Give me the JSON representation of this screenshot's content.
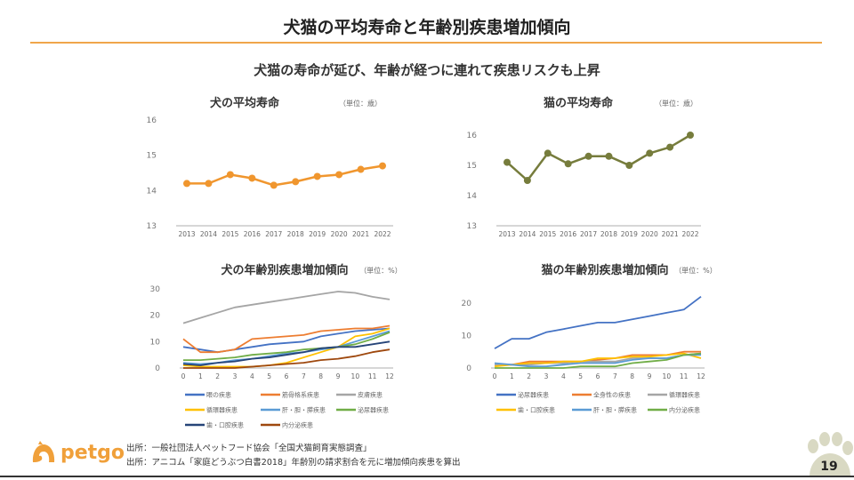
{
  "slide": {
    "title": "犬猫の平均寿命と年齢別疾患増加傾向",
    "subtitle": "犬猫の寿命が延び、年齢が経つに連れて疾患リスクも上昇",
    "logo_text": "petgo",
    "sources": [
      "出所：一般社団法人ペットフード協会「全国犬猫飼育実態調査」",
      "出所：アニコム「家庭どうぶつ白書2018」年齢別の請求割合を元に増加傾向疾患を算出"
    ],
    "page_number": "19",
    "colors": {
      "accent": "#f0a64a",
      "logo": "#f0a03a",
      "paw": "#d9d9c3"
    }
  },
  "chart_data": [
    {
      "id": "dog-lifespan",
      "type": "line",
      "title": "犬の平均寿命",
      "unit": "（単位：歳）",
      "x": [
        "2013",
        "2014",
        "2015",
        "2016",
        "2017",
        "2018",
        "2019",
        "2020",
        "2021",
        "2022"
      ],
      "series": [
        {
          "name": "犬の平均寿命",
          "color": "#f0962e",
          "markers": true,
          "values": [
            14.2,
            14.2,
            14.45,
            14.35,
            14.15,
            14.25,
            14.4,
            14.45,
            14.6,
            14.7
          ]
        }
      ],
      "ylim": [
        13,
        16
      ],
      "yticks": [
        13,
        14,
        15,
        16
      ],
      "grid": false,
      "legend": "none"
    },
    {
      "id": "cat-lifespan",
      "type": "line",
      "title": "猫の平均寿命",
      "unit": "（単位：歳）",
      "x": [
        "2013",
        "2014",
        "2015",
        "2016",
        "2017",
        "2018",
        "2019",
        "2020",
        "2021",
        "2022"
      ],
      "series": [
        {
          "name": "猫の平均寿命",
          "color": "#767c3c",
          "markers": true,
          "values": [
            15.1,
            14.5,
            15.4,
            15.05,
            15.3,
            15.3,
            15.0,
            15.4,
            15.6,
            16.0
          ]
        }
      ],
      "ylim": [
        13,
        16.5
      ],
      "yticks": [
        13,
        14,
        15,
        16
      ],
      "grid": false,
      "legend": "none"
    },
    {
      "id": "dog-disease",
      "type": "line",
      "title": "犬の年齢別疾患増加傾向",
      "unit": "（単位：%）",
      "x": [
        "0",
        "1",
        "2",
        "3",
        "4",
        "5",
        "6",
        "7",
        "8",
        "9",
        "10",
        "11",
        "12"
      ],
      "series": [
        {
          "name": "眼の疾患",
          "color": "#4472c4",
          "values": [
            8,
            7,
            6,
            7,
            8,
            9,
            9.5,
            10,
            12,
            13,
            14,
            14.5,
            15
          ]
        },
        {
          "name": "筋骨格系疾患",
          "color": "#ed7d31",
          "values": [
            11,
            6,
            6,
            7,
            11,
            11.5,
            12,
            12.5,
            14,
            14.5,
            15,
            15,
            16
          ]
        },
        {
          "name": "皮膚疾患",
          "color": "#a5a5a5",
          "values": [
            17,
            19,
            21,
            23,
            24,
            25,
            26,
            27,
            28,
            29,
            28.5,
            27,
            26
          ]
        },
        {
          "name": "循環器疾患",
          "color": "#ffc000",
          "values": [
            1,
            0.5,
            0.5,
            0.5,
            0.5,
            1,
            2,
            4,
            6,
            8,
            12,
            13,
            15
          ]
        },
        {
          "name": "肝・胆・膵疾患",
          "color": "#5b9bd5",
          "values": [
            2,
            1.5,
            2,
            3,
            3.5,
            4.5,
            5.5,
            6,
            7,
            8,
            10,
            12,
            14
          ]
        },
        {
          "name": "泌尿器疾患",
          "color": "#70ad47",
          "values": [
            3,
            3,
            3.5,
            4,
            5,
            5.5,
            6,
            7,
            7.5,
            8,
            9,
            11,
            13.5
          ]
        },
        {
          "name": "歯・口腔疾患",
          "color": "#264478",
          "values": [
            1.5,
            1,
            2,
            2.5,
            3.5,
            4,
            5,
            6,
            7.5,
            8,
            8,
            9,
            10
          ]
        },
        {
          "name": "内分泌疾患",
          "color": "#9e480e",
          "values": [
            0,
            0,
            0,
            0,
            0.5,
            1,
            1.5,
            2,
            3,
            3.5,
            4.5,
            6,
            7
          ]
        }
      ],
      "ylim": [
        0,
        30
      ],
      "yticks": [
        0,
        10,
        20,
        30
      ],
      "grid": false,
      "legend": "bottom"
    },
    {
      "id": "cat-disease",
      "type": "line",
      "title": "猫の年齢別疾患増加傾向",
      "unit": "（単位：%）",
      "x": [
        "0",
        "1",
        "2",
        "3",
        "4",
        "5",
        "6",
        "7",
        "8",
        "9",
        "10",
        "11",
        "12"
      ],
      "series": [
        {
          "name": "泌尿器疾患",
          "color": "#4472c4",
          "values": [
            6,
            9,
            9,
            11,
            12,
            13,
            14,
            14,
            15,
            16,
            17,
            18,
            22
          ]
        },
        {
          "name": "全身性の疾患",
          "color": "#ed7d31",
          "values": [
            1,
            1,
            2,
            2,
            2,
            2,
            2.5,
            3,
            4,
            4,
            4,
            5,
            5
          ]
        },
        {
          "name": "循環器疾患",
          "color": "#a5a5a5",
          "values": [
            1,
            1,
            1,
            1.5,
            1.5,
            2,
            2,
            2,
            3,
            3,
            3,
            4,
            4.5
          ]
        },
        {
          "name": "歯・口腔疾患",
          "color": "#ffc000",
          "values": [
            0.5,
            1,
            1.5,
            1.5,
            2,
            2,
            3,
            3,
            3.5,
            3.5,
            4,
            4.5,
            3
          ]
        },
        {
          "name": "肝・胆・膵疾患",
          "color": "#5b9bd5",
          "values": [
            1.5,
            1,
            0.5,
            0.5,
            1,
            1.5,
            1.5,
            1.5,
            2.5,
            3,
            3,
            4,
            4
          ]
        },
        {
          "name": "内分泌疾患",
          "color": "#70ad47",
          "values": [
            0,
            0,
            0,
            0,
            0,
            0.5,
            0.5,
            0.5,
            1.5,
            2,
            2.5,
            4,
            4.5
          ]
        }
      ],
      "ylim": [
        0,
        23
      ],
      "yticks": [
        0,
        10,
        20
      ],
      "grid": false,
      "legend": "bottom"
    }
  ]
}
